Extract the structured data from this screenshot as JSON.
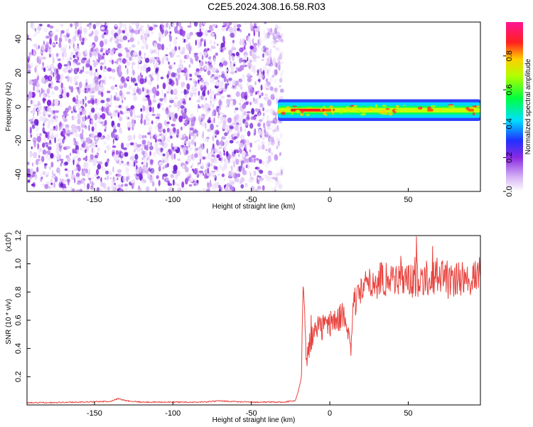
{
  "title": "C2E5.2024.308.16.58.R03",
  "colors": {
    "line": "#e8423d",
    "noise": "#8a2be2",
    "signal_core": "#ff2020",
    "background": "#ffffff"
  },
  "chart_data": [
    {
      "type": "heatmap",
      "xlabel": "Height of straight line (km)",
      "ylabel": "Frequency (Hz)",
      "xlim": [
        -193,
        96
      ],
      "ylim": [
        -50,
        50
      ],
      "xticks": [
        -150,
        -100,
        -50,
        0,
        50
      ],
      "yticks": [
        -40,
        -20,
        0,
        20,
        40
      ],
      "colorbar": {
        "label": "Normalized spectral amplitude",
        "range": [
          0,
          1
        ],
        "ticks": [
          "0.0",
          "0.2",
          "0.4",
          "0.6",
          "0.8"
        ],
        "colormap": "rainbow (white-purple-blue-cyan-green-yellow-red-magenta)"
      },
      "regions": [
        {
          "x": [
            -193,
            -33
          ],
          "description": "broadband noise, amplitude ~0.0-0.2"
        },
        {
          "x": [
            -33,
            96
          ],
          "y_center": -2,
          "y_halfwidth": 4,
          "amplitude": "0.3-1.0"
        }
      ],
      "grid": false
    },
    {
      "type": "line",
      "xlabel": "Height of straight line (km)",
      "ylabel": "SNR (10 * v/v)",
      "y_multiplier": "(x10^4)",
      "xlim": [
        -193,
        96
      ],
      "ylim": [
        0,
        1.2
      ],
      "xticks": [
        -150,
        -100,
        -50,
        0,
        50
      ],
      "yticks": [
        "0.2",
        "0.4",
        "0.6",
        "0.8",
        "1.0",
        "1.2"
      ],
      "x": [
        -193,
        -160,
        -140,
        -135,
        -130,
        -120,
        -100,
        -80,
        -70,
        -65,
        -50,
        -30,
        -22,
        -20,
        -18,
        -17,
        -15,
        -10,
        -5,
        0,
        5,
        10,
        13,
        15,
        20,
        25,
        30,
        35,
        40,
        50,
        60,
        70,
        80,
        90,
        96
      ],
      "y": [
        0.015,
        0.02,
        0.025,
        0.045,
        0.03,
        0.02,
        0.02,
        0.02,
        0.03,
        0.025,
        0.02,
        0.02,
        0.03,
        0.1,
        0.2,
        0.88,
        0.35,
        0.5,
        0.55,
        0.58,
        0.6,
        0.65,
        0.35,
        0.7,
        0.8,
        0.85,
        0.88,
        0.9,
        0.9,
        0.88,
        0.9,
        0.92,
        0.88,
        0.9,
        0.92
      ],
      "grid": false
    }
  ]
}
